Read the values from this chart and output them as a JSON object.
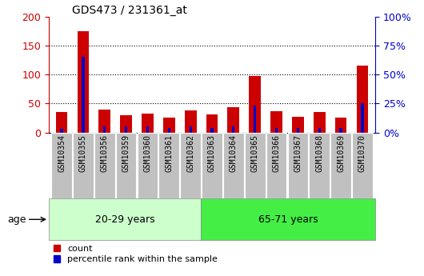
{
  "title": "GDS473 / 231361_at",
  "samples": [
    "GSM10354",
    "GSM10355",
    "GSM10356",
    "GSM10359",
    "GSM10360",
    "GSM10361",
    "GSM10362",
    "GSM10363",
    "GSM10364",
    "GSM10365",
    "GSM10366",
    "GSM10367",
    "GSM10368",
    "GSM10369",
    "GSM10370"
  ],
  "count_values": [
    35,
    175,
    40,
    30,
    32,
    26,
    38,
    31,
    44,
    97,
    37,
    27,
    36,
    25,
    115
  ],
  "percentile_values": [
    3,
    65,
    5,
    5,
    5,
    4,
    5,
    4,
    5,
    23,
    4,
    4,
    4,
    4,
    25
  ],
  "group1_label": "20-29 years",
  "group2_label": "65-71 years",
  "group1_count": 7,
  "group2_count": 8,
  "left_ylim": [
    0,
    200
  ],
  "right_ylim": [
    0,
    100
  ],
  "left_yticks": [
    0,
    50,
    100,
    150,
    200
  ],
  "right_yticks": [
    0,
    25,
    50,
    75,
    100
  ],
  "right_yticklabels": [
    "0%",
    "25%",
    "50%",
    "75%",
    "100%"
  ],
  "bar_color_count": "#cc0000",
  "bar_color_pct": "#0000cc",
  "group1_bg": "#ccffcc",
  "group2_bg": "#44ee44",
  "xtick_bg": "#c0c0c0",
  "age_label": "age",
  "legend_count": "count",
  "legend_pct": "percentile rank within the sample",
  "count_bar_width": 0.55,
  "pct_bar_width": 0.12,
  "dotted_grid_color": "#000000",
  "tick_label_color_left": "#cc0000",
  "tick_label_color_right": "#0000cc"
}
